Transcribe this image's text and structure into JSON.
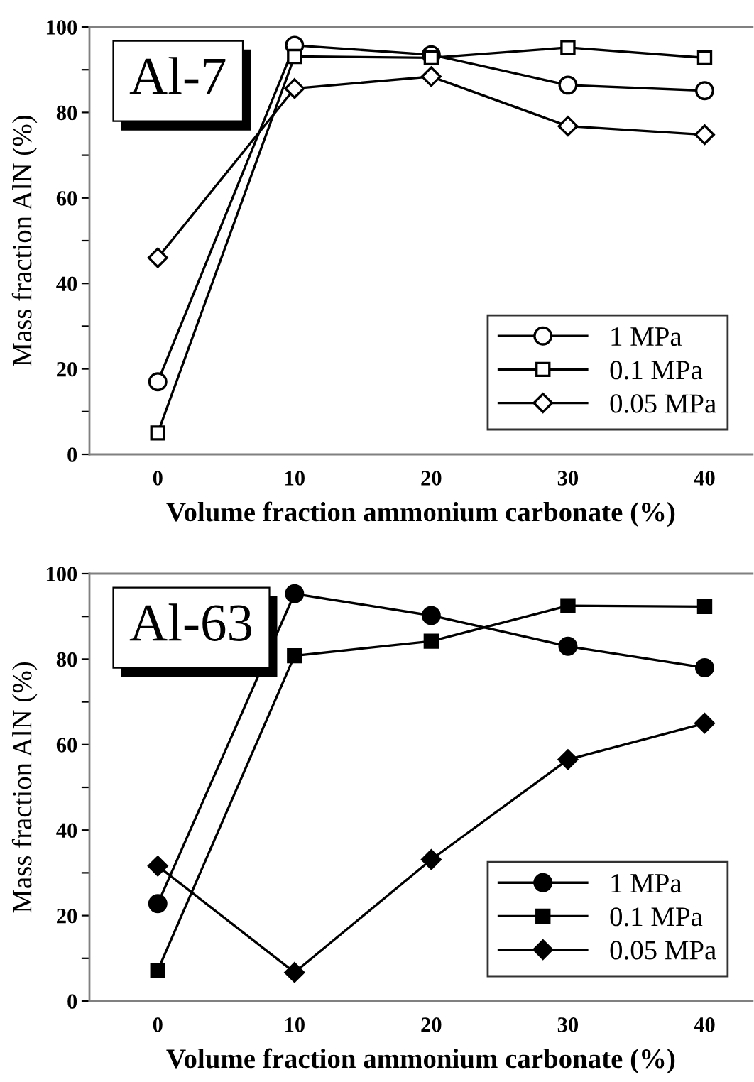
{
  "chart_data": [
    {
      "type": "line",
      "xlabel": "Volume fraction ammonium carbonate (%)",
      "ylabel": "Mass fraction AlN (%)",
      "annotations": [
        "Al-7"
      ],
      "xlim": [
        -5,
        43.5
      ],
      "ylim": [
        0,
        100
      ],
      "xticks": [
        0,
        10,
        20,
        30,
        40
      ],
      "yticks": [
        0,
        {
          "value": 10,
          "label": null
        },
        20,
        {
          "value": 30,
          "label": null
        },
        40,
        {
          "value": 50,
          "label": null
        },
        60,
        {
          "value": 70,
          "label": null
        },
        80,
        {
          "value": 90,
          "label": null
        },
        100
      ],
      "legend": "bottom right",
      "grid": false,
      "line_style": "solid",
      "x": [
        0,
        10,
        20,
        30,
        40
      ],
      "series": [
        {
          "name": "1 MPa",
          "color": "#000000",
          "marker": "circle",
          "values": [
            17,
            95.7,
            93.5,
            86.4,
            85.1
          ]
        },
        {
          "name": "0.1 MPa",
          "color": "#000000",
          "marker": "square",
          "values": [
            5,
            93.1,
            92.8,
            95.2,
            92.8
          ]
        },
        {
          "name": "0.05 MPa",
          "color": "#000000",
          "marker": "diamond",
          "values": [
            46,
            85.6,
            88.4,
            76.8,
            74.8
          ]
        }
      ]
    },
    {
      "type": "line",
      "xlabel": "Volume fraction ammonium carbonate (%)",
      "ylabel": "Mass fraction AlN (%)",
      "annotations": [
        "Al-63"
      ],
      "xlim": [
        -5,
        43.5
      ],
      "ylim": [
        0,
        100
      ],
      "xticks": [
        0,
        10,
        20,
        30,
        40
      ],
      "yticks": [
        0,
        {
          "value": 10,
          "label": null
        },
        20,
        {
          "value": 30,
          "label": null
        },
        40,
        {
          "value": 50,
          "label": null
        },
        60,
        {
          "value": 70,
          "label": null
        },
        80,
        {
          "value": 90,
          "label": null
        },
        100
      ],
      "legend": "bottom right",
      "grid": false,
      "line_style": "solid",
      "x": [
        0,
        10,
        20,
        30,
        40
      ],
      "series": [
        {
          "name": "1 MPa",
          "color": "#000000",
          "marker": "circle",
          "values": [
            22.8,
            95.3,
            90.2,
            83.0,
            78.0
          ]
        },
        {
          "name": "0.1 MPa",
          "color": "#000000",
          "marker": "square",
          "values": [
            7.2,
            80.8,
            84.2,
            92.5,
            92.3
          ]
        },
        {
          "name": "0.05 MPa",
          "color": "#000000",
          "marker": "diamond",
          "values": [
            31.6,
            6.7,
            33.1,
            56.5,
            65.0
          ]
        }
      ]
    }
  ]
}
